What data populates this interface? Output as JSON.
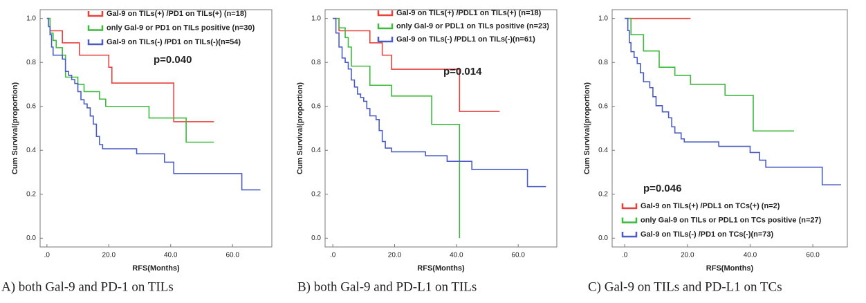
{
  "chart_data": [
    {
      "type": "step",
      "caption": "A) both Gal-9 and PD-1 on TILs",
      "xlabel": "RFS(Months)",
      "ylabel": "Cum Survival(proportion)",
      "annotation": "p=0.040",
      "legend": "top",
      "xlim": [
        -2.2,
        72.7
      ],
      "ylim": [
        -0.04,
        1.04
      ],
      "xticks": [
        {
          "value": 0,
          "label": ".0"
        },
        {
          "value": 20,
          "label": "20.0"
        },
        {
          "value": 40,
          "label": "40.0"
        },
        {
          "value": 60,
          "label": "60.0"
        }
      ],
      "yticks": [
        {
          "value": 0,
          "label": "0.0"
        },
        {
          "value": 0.2,
          "label": "0.2"
        },
        {
          "value": 0.4,
          "label": "0.4"
        },
        {
          "value": 0.6,
          "label": "0.6"
        },
        {
          "value": 0.8,
          "label": "0.8"
        },
        {
          "value": 1,
          "label": "1.0"
        }
      ],
      "series": [
        {
          "name": "Gal-9 on TILs(+) /PD1 on TILs(+) (n=18)",
          "color": "#e8413c",
          "x": [
            0,
            1,
            5,
            10.5,
            20,
            21,
            41,
            54
          ],
          "values": [
            1.0,
            0.944,
            0.889,
            0.833,
            0.778,
            0.706,
            0.53,
            0.53
          ]
        },
        {
          "name": "only Gal-9 or PD1 on TILs positive (n=30)",
          "color": "#3cba3c",
          "x": [
            0,
            1,
            2,
            3,
            5,
            6,
            10,
            12,
            17,
            19,
            33,
            45,
            54
          ],
          "values": [
            1.0,
            0.933,
            0.9,
            0.867,
            0.833,
            0.733,
            0.7,
            0.667,
            0.633,
            0.6,
            0.547,
            0.437,
            0.437
          ]
        },
        {
          "name": "Gal-9 on TILs(-) /PD1 on TILs(-)(n=54)",
          "color": "#4a5cc4",
          "x": [
            0,
            0.5,
            1,
            1.5,
            2,
            5,
            6,
            7,
            8,
            9,
            10,
            11,
            12,
            13,
            14,
            15,
            16,
            17,
            18,
            29,
            38,
            41,
            63,
            69
          ],
          "values": [
            1.0,
            0.963,
            0.926,
            0.87,
            0.833,
            0.815,
            0.759,
            0.741,
            0.722,
            0.704,
            0.667,
            0.63,
            0.611,
            0.593,
            0.556,
            0.519,
            0.463,
            0.426,
            0.407,
            0.384,
            0.346,
            0.294,
            0.22,
            0.22
          ]
        }
      ]
    },
    {
      "type": "step",
      "caption": "B) both Gal-9 and PD-L1 on TILs",
      "xlabel": "RFS(Months)",
      "ylabel": "Cum Survival(proportion)",
      "annotation": "p=0.014",
      "legend": "top",
      "xlim": [
        -2.5,
        72.5
      ],
      "ylim": [
        -0.04,
        1.04
      ],
      "xticks": [
        {
          "value": 0,
          "label": ".0"
        },
        {
          "value": 20,
          "label": "20.0"
        },
        {
          "value": 40,
          "label": "40.0"
        },
        {
          "value": 60,
          "label": "60.0"
        }
      ],
      "yticks": [
        {
          "value": 0,
          "label": "0.0"
        },
        {
          "value": 0.2,
          "label": "0.2"
        },
        {
          "value": 0.4,
          "label": "0.4"
        },
        {
          "value": 0.6,
          "label": "0.6"
        },
        {
          "value": 0.8,
          "label": "0.8"
        },
        {
          "value": 1,
          "label": "1.0"
        }
      ],
      "series": [
        {
          "name": "Gal-9 on TILs(+) /PDL1 on TILs(+) (n=18)",
          "color": "#e8413c",
          "x": [
            0,
            2,
            12,
            16,
            19,
            41,
            54
          ],
          "values": [
            1.0,
            0.944,
            0.889,
            0.833,
            0.769,
            0.577,
            0.577
          ]
        },
        {
          "name": "only Gal-9 or PDL1 on TILs positive (n=23)",
          "color": "#3cba3c",
          "x": [
            0,
            2,
            4,
            5,
            6,
            12,
            19,
            32,
            41
          ],
          "values": [
            1.0,
            0.957,
            0.913,
            0.87,
            0.783,
            0.696,
            0.647,
            0.518,
            0.0
          ]
        },
        {
          "name": "Gal-9 on TILs(-) /PDL1 on TILs(-)(n=61)",
          "color": "#4a5cc4",
          "x": [
            0,
            1,
            2,
            3,
            4,
            5,
            6,
            7,
            8,
            9,
            10,
            11,
            12,
            14,
            15,
            16,
            17,
            19,
            30,
            37,
            45,
            63,
            69
          ],
          "values": [
            1.0,
            0.934,
            0.87,
            0.82,
            0.8,
            0.77,
            0.72,
            0.688,
            0.656,
            0.64,
            0.623,
            0.59,
            0.557,
            0.54,
            0.49,
            0.44,
            0.41,
            0.393,
            0.375,
            0.35,
            0.313,
            0.235,
            0.235
          ]
        }
      ]
    },
    {
      "type": "step",
      "caption": "C) Gal-9 on TILs and PD-L1 on TCs",
      "xlabel": "RFS(Months)",
      "ylabel": "Cum Survival(proportion)",
      "annotation": "p=0.046",
      "legend": "bottom",
      "xlim": [
        -4,
        71
      ],
      "ylim": [
        -0.04,
        1.04
      ],
      "xticks": [
        {
          "value": 0,
          "label": ".0"
        },
        {
          "value": 20,
          "label": "20.0"
        },
        {
          "value": 40,
          "label": "40.0"
        },
        {
          "value": 60,
          "label": "60.0"
        }
      ],
      "yticks": [
        {
          "value": 0,
          "label": "0.0"
        },
        {
          "value": 0.2,
          "label": "0.2"
        },
        {
          "value": 0.4,
          "label": "0.4"
        },
        {
          "value": 0.6,
          "label": "0.6"
        },
        {
          "value": 0.8,
          "label": "0.8"
        },
        {
          "value": 1,
          "label": "1.0"
        }
      ],
      "series": [
        {
          "name": "Gal-9 on TILs(+) /PDL1 on TCs(+) (n=2)",
          "color": "#e8413c",
          "x": [
            0,
            21
          ],
          "values": [
            1.0,
            1.0
          ]
        },
        {
          "name": "only Gal-9 on TILs or PDL1 on TCs positive (n=27)",
          "color": "#3cba3c",
          "x": [
            0,
            2,
            6,
            11,
            16,
            21,
            32,
            41,
            54
          ],
          "values": [
            1.0,
            0.926,
            0.852,
            0.778,
            0.741,
            0.7,
            0.65,
            0.488,
            0.488
          ]
        },
        {
          "name": "Gal-9 on TILs(-) /PD1 on TCs(-)(n=73)",
          "color": "#4a5cc4",
          "x": [
            0,
            1,
            1.5,
            2,
            3,
            4,
            5,
            6,
            8,
            9,
            10,
            12,
            14,
            15,
            16,
            18,
            19,
            30,
            40,
            43,
            45,
            63,
            69
          ],
          "values": [
            1.0,
            0.945,
            0.89,
            0.849,
            0.822,
            0.795,
            0.753,
            0.712,
            0.685,
            0.644,
            0.603,
            0.575,
            0.548,
            0.507,
            0.479,
            0.452,
            0.438,
            0.418,
            0.39,
            0.355,
            0.323,
            0.243,
            0.243
          ]
        }
      ]
    }
  ]
}
